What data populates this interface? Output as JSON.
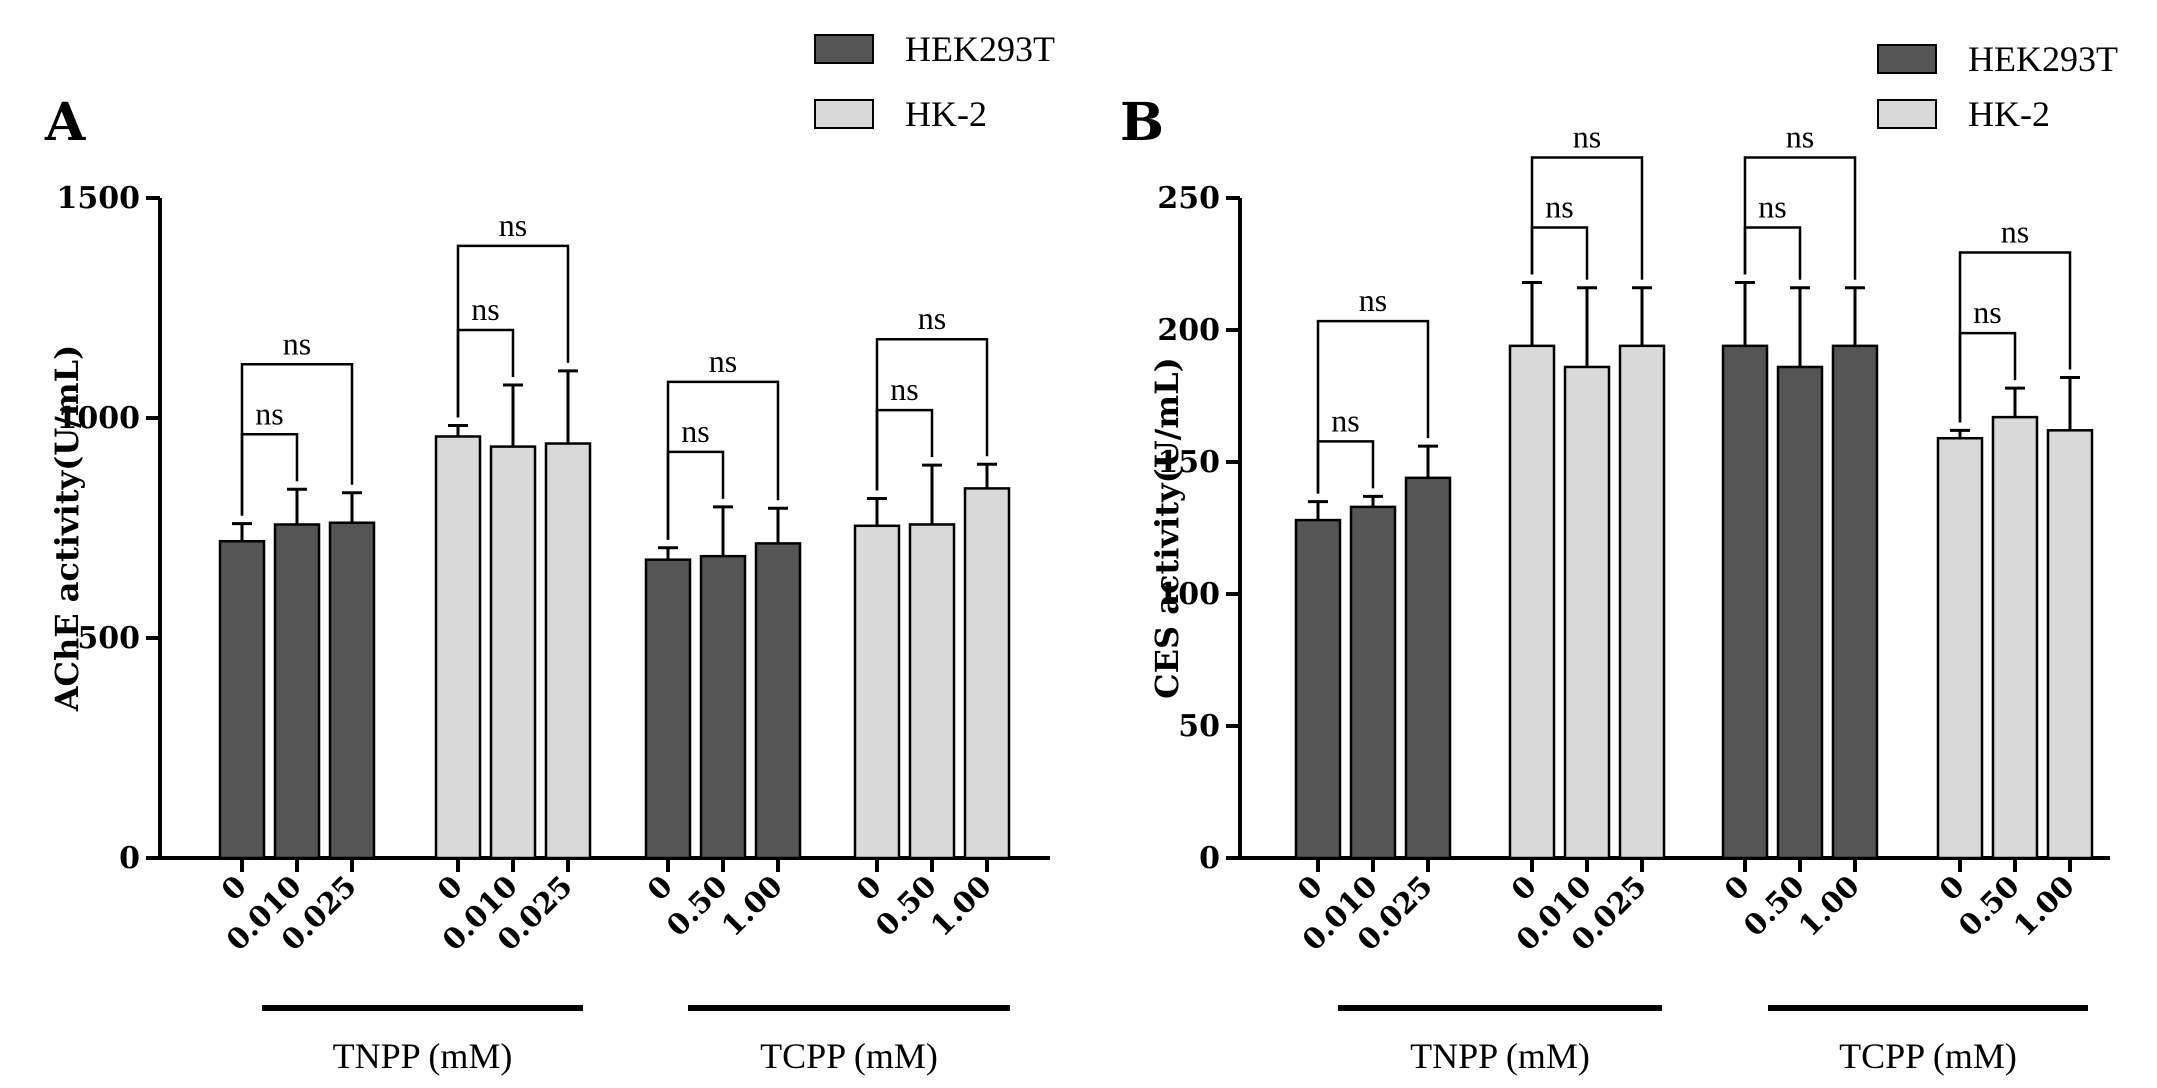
{
  "chart_data": [
    {
      "type": "bar",
      "panel": "A",
      "ylabel": "AChE activity(U/mL)",
      "ylim": [
        0,
        1500
      ],
      "yticks": [
        0,
        500,
        1000,
        1500
      ],
      "legend": [
        {
          "name": "HEK293T",
          "color": "#555555"
        },
        {
          "name": "HK-2",
          "color": "#d9d9d9"
        }
      ],
      "groups": [
        {
          "cell": "HEK293T",
          "compound": "TNPP",
          "categories": [
            "0",
            "0.010",
            "0.025"
          ],
          "values": [
            720,
            758,
            762
          ],
          "errors": [
            40,
            80,
            68
          ],
          "comparisons": [
            {
              "from": 0,
              "to": 1,
              "label": "ns"
            },
            {
              "from": 0,
              "to": 2,
              "label": "ns"
            }
          ]
        },
        {
          "cell": "HK-2",
          "compound": "TNPP",
          "categories": [
            "0",
            "0.010",
            "0.025"
          ],
          "values": [
            958,
            935,
            942
          ],
          "errors": [
            25,
            140,
            165
          ],
          "comparisons": [
            {
              "from": 0,
              "to": 1,
              "label": "ns"
            },
            {
              "from": 0,
              "to": 2,
              "label": "ns"
            }
          ]
        },
        {
          "cell": "HEK293T",
          "compound": "TCPP",
          "categories": [
            "0",
            "0.50",
            "1.00"
          ],
          "values": [
            678,
            686,
            715
          ],
          "errors": [
            27,
            112,
            80
          ],
          "comparisons": [
            {
              "from": 0,
              "to": 1,
              "label": "ns"
            },
            {
              "from": 0,
              "to": 2,
              "label": "ns"
            }
          ]
        },
        {
          "cell": "HK-2",
          "compound": "TCPP",
          "categories": [
            "0",
            "0.50",
            "1.00"
          ],
          "values": [
            755,
            758,
            840
          ],
          "errors": [
            62,
            135,
            55
          ],
          "comparisons": [
            {
              "from": 0,
              "to": 1,
              "label": "ns"
            },
            {
              "from": 0,
              "to": 2,
              "label": "ns"
            }
          ]
        }
      ],
      "group_labels": [
        {
          "label": "TNPP (mM)",
          "groups": [
            0,
            1
          ]
        },
        {
          "label": "TCPP (mM)",
          "groups": [
            2,
            3
          ]
        }
      ]
    },
    {
      "type": "bar",
      "panel": "B",
      "ylabel": "CES activity(U/mL)",
      "ylim": [
        0,
        250
      ],
      "yticks": [
        0,
        50,
        100,
        150,
        200,
        250
      ],
      "legend": [
        {
          "name": "HEK293T",
          "color": "#555555"
        },
        {
          "name": "HK-2",
          "color": "#d9d9d9"
        }
      ],
      "groups": [
        {
          "cell": "HEK293T",
          "compound": "TNPP",
          "categories": [
            "0",
            "0.010",
            "0.025"
          ],
          "values": [
            128,
            133,
            144
          ],
          "errors": [
            7,
            4,
            12
          ],
          "comparisons": [
            {
              "from": 0,
              "to": 1,
              "label": "ns"
            },
            {
              "from": 0,
              "to": 2,
              "label": "ns"
            }
          ]
        },
        {
          "cell": "HK-2",
          "compound": "TNPP",
          "categories": [
            "0",
            "0.010",
            "0.025"
          ],
          "values": [
            194,
            186,
            194
          ],
          "errors": [
            24,
            30,
            22
          ],
          "comparisons": [
            {
              "from": 0,
              "to": 1,
              "label": "ns"
            },
            {
              "from": 0,
              "to": 2,
              "label": "ns"
            }
          ]
        },
        {
          "cell": "HEK293T",
          "compound": "TCPP",
          "categories": [
            "0",
            "0.50",
            "1.00"
          ],
          "values": [
            194,
            186,
            194
          ],
          "errors": [
            24,
            30,
            22
          ],
          "comparisons": [
            {
              "from": 0,
              "to": 1,
              "label": "ns"
            },
            {
              "from": 0,
              "to": 2,
              "label": "ns"
            }
          ]
        },
        {
          "cell": "HK-2",
          "compound": "TCPP",
          "categories": [
            "0",
            "0.50",
            "1.00"
          ],
          "values": [
            159,
            167,
            162
          ],
          "errors": [
            3,
            11,
            20
          ],
          "comparisons": [
            {
              "from": 0,
              "to": 1,
              "label": "ns"
            },
            {
              "from": 0,
              "to": 2,
              "label": "ns"
            }
          ]
        }
      ],
      "group_labels": [
        {
          "label": "TNPP (mM)",
          "groups": [
            0,
            1
          ]
        },
        {
          "label": "TCPP (mM)",
          "groups": [
            2,
            3
          ]
        }
      ]
    }
  ]
}
